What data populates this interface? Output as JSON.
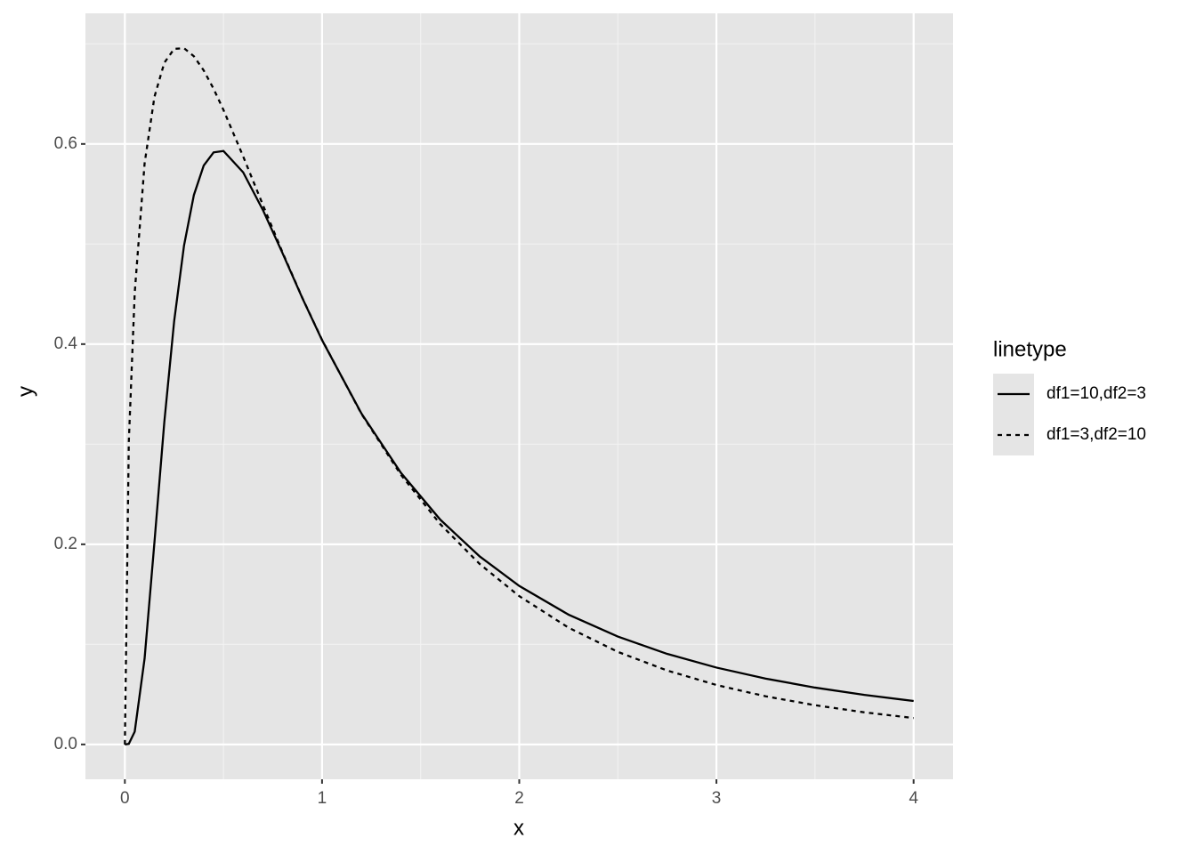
{
  "chart_data": {
    "type": "line",
    "x_label": "x",
    "y_label": "y",
    "x": [
      0,
      0.02,
      0.05,
      0.1,
      0.15,
      0.2,
      0.25,
      0.3,
      0.35,
      0.4,
      0.45,
      0.5,
      0.6,
      0.7,
      0.8,
      0.9,
      1.0,
      1.2,
      1.4,
      1.6,
      1.8,
      2.0,
      2.25,
      2.5,
      2.75,
      3.0,
      3.25,
      3.5,
      3.75,
      4.0
    ],
    "series": [
      {
        "name": "df1=10,df2=3",
        "color": "#000000",
        "dash": "solid",
        "values": [
          0,
          0.0006,
          0.0128,
          0.0858,
          0.202,
          0.322,
          0.423,
          0.4985,
          0.549,
          0.5785,
          0.5916,
          0.593,
          0.5716,
          0.534,
          0.4907,
          0.446,
          0.404,
          0.3306,
          0.2714,
          0.2245,
          0.1878,
          0.1584,
          0.1297,
          0.1078,
          0.0905,
          0.0768,
          0.0658,
          0.0568,
          0.0495,
          0.0434
        ]
      },
      {
        "name": "df1=3,df2=10",
        "color": "#000000",
        "dash": "dotted",
        "values": [
          0,
          0.3026,
          0.4515,
          0.5804,
          0.6471,
          0.6811,
          0.695,
          0.6957,
          0.6876,
          0.6734,
          0.6551,
          0.634,
          0.5875,
          0.539,
          0.4914,
          0.4462,
          0.4042,
          0.3302,
          0.2694,
          0.22,
          0.1802,
          0.1482,
          0.1167,
          0.0925,
          0.0739,
          0.0594,
          0.0481,
          0.0392,
          0.0321,
          0.0264
        ]
      }
    ],
    "legend_title": "linetype",
    "legend_position": "right",
    "xlim": [
      -0.2,
      4.2
    ],
    "ylim": [
      -0.0348,
      0.7305
    ],
    "xticks": [
      0,
      1,
      2,
      3,
      4
    ],
    "yticks": [
      {
        "value": 0,
        "label": "0.0"
      },
      {
        "value": 0.2,
        "label": "0.2"
      },
      {
        "value": 0.4,
        "label": "0.4"
      },
      {
        "value": 0.6,
        "label": "0.6"
      }
    ],
    "minor_xticks": [
      0.5,
      1.5,
      2.5,
      3.5
    ],
    "minor_yticks": [
      0.1,
      0.3,
      0.5,
      0.7
    ],
    "grid": true
  }
}
